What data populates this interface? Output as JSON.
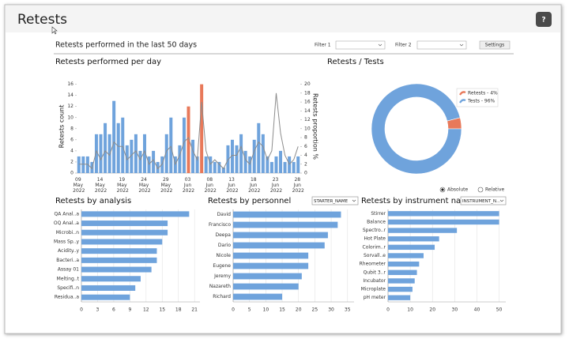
{
  "header": {
    "title": "Retests",
    "help": "?"
  },
  "toolbar": {
    "title": "Retests performed in the last 50 days",
    "filter1": "Filter 1",
    "filter2": "Filter 2",
    "settings": "Settings"
  },
  "chart_data": [
    {
      "type": "bar",
      "title": "Retests performed per day",
      "ylabel": "Retests count",
      "y2label": "Retests proportion %",
      "categories": [
        "09 May 2022",
        null,
        null,
        null,
        null,
        "14 May 2022",
        null,
        null,
        null,
        null,
        "19 May 2022",
        null,
        null,
        null,
        null,
        "24 May 2022",
        null,
        null,
        null,
        null,
        "29 May 2022",
        null,
        null,
        null,
        null,
        "03 Jun 2022",
        null,
        null,
        null,
        null,
        "08 Jun 2022",
        null,
        null,
        null,
        null,
        "13 Jun 2022",
        null,
        null,
        null,
        null,
        "18 Jun 2022",
        null,
        null,
        null,
        null,
        "23 Jun 2022",
        null,
        null,
        null,
        null,
        "28 Jun 2022"
      ],
      "series": [
        {
          "type": "bar",
          "color": "#6fa3dc",
          "colors": [
            "#6fa3dc",
            "#6fa3dc",
            "#6fa3dc",
            "#6fa3dc",
            "#6fa3dc",
            "#6fa3dc",
            "#6fa3dc",
            "#6fa3dc",
            "#6fa3dc",
            "#6fa3dc",
            "#6fa3dc",
            "#6fa3dc",
            "#6fa3dc",
            "#6fa3dc",
            "#6fa3dc",
            "#6fa3dc",
            "#6fa3dc",
            "#6fa3dc",
            "#6fa3dc",
            "#6fa3dc",
            "#6fa3dc",
            "#6fa3dc",
            "#6fa3dc",
            "#6fa3dc",
            "#6fa3dc",
            "#e8795a",
            "#6fa3dc",
            "#6fa3dc",
            "#e8795a",
            "#6fa3dc",
            "#6fa3dc",
            "#6fa3dc",
            "#6fa3dc",
            "#6fa3dc",
            "#6fa3dc",
            "#6fa3dc",
            "#6fa3dc",
            "#6fa3dc",
            "#6fa3dc",
            "#6fa3dc",
            "#6fa3dc",
            "#6fa3dc",
            "#6fa3dc",
            "#6fa3dc",
            "#6fa3dc",
            "#6fa3dc",
            "#6fa3dc",
            "#6fa3dc",
            "#6fa3dc",
            "#6fa3dc",
            "#6fa3dc"
          ],
          "values": [
            3,
            3,
            3,
            2,
            7,
            7,
            9,
            7,
            13,
            9,
            10,
            5,
            6,
            7,
            4,
            7,
            3,
            4,
            2,
            3,
            7,
            10,
            3,
            5,
            10,
            12,
            6,
            3,
            16,
            3,
            3,
            2,
            2,
            1,
            5,
            6,
            5,
            7,
            4,
            3,
            6,
            9,
            7,
            3,
            2,
            3,
            4,
            2,
            3,
            2,
            3
          ]
        },
        {
          "type": "line",
          "axis": "y2",
          "color": "#8c8c8c",
          "values": [
            2,
            2,
            2,
            1,
            5,
            3,
            5,
            4,
            7,
            6,
            6,
            3,
            4,
            5,
            3,
            5,
            2,
            3,
            1,
            2,
            5,
            6,
            2,
            4,
            7,
            8,
            5,
            3,
            16,
            5,
            2,
            3,
            2,
            1,
            3,
            4,
            4,
            6,
            3,
            2,
            5,
            7,
            6,
            3,
            5,
            18,
            9,
            4,
            2,
            3,
            6
          ]
        }
      ],
      "ylim": [
        0,
        16.8
      ],
      "yticks": [
        0,
        2,
        4,
        6,
        8,
        10,
        12,
        14,
        16
      ],
      "y2lim": [
        0,
        21
      ],
      "y2ticks": [
        0,
        2,
        4,
        6,
        8,
        10,
        12,
        14,
        16,
        18,
        20
      ]
    },
    {
      "type": "pie",
      "title": "Retests / Tests",
      "hole": true,
      "categories": [
        "Retests",
        "Tests"
      ],
      "values": [
        4,
        96
      ],
      "value_labels": [
        "Retests - 4%",
        "Tests - 96%"
      ],
      "colors": [
        "#e8795a",
        "#6fa3dc"
      ],
      "legend": "upper right",
      "options": [
        "Absolute",
        "Relative"
      ],
      "selected": 0
    },
    {
      "type": "hbar",
      "title": "Retests by analysis",
      "color": "#6fa3dc",
      "categories": [
        "QA Anal..a",
        "OQ Anal..a",
        "Microbi..n",
        "Mass Sp..y",
        "Acidity..y",
        "Bacteri..a",
        "Assay 01",
        "Melting..t",
        "Specifi..n",
        "Residua..a"
      ],
      "values": [
        20,
        16,
        16,
        15,
        14,
        14,
        13,
        11,
        10,
        9
      ],
      "xlim": [
        0,
        22
      ],
      "xticks": [
        0,
        3,
        6,
        9,
        12,
        15,
        18,
        21
      ],
      "grid": true
    },
    {
      "type": "hbar",
      "title": "Retests by personnel",
      "dropdown": "STARTER_NAME",
      "color": "#6fa3dc",
      "categories": [
        "David",
        "Francisco",
        "Deepa",
        "Dario",
        "Nicole",
        "Eugene",
        "Jeremy",
        "Nazareth",
        "Richard"
      ],
      "values": [
        33,
        32,
        29,
        28,
        23,
        23,
        21,
        20,
        15
      ],
      "xlim": [
        0,
        37
      ],
      "xticks": [
        0,
        5,
        10,
        15,
        20,
        25,
        30,
        35
      ],
      "grid": true
    },
    {
      "type": "hbar",
      "title": "Retests by instrument name",
      "dropdown": "INSTRUMENT_N...",
      "color": "#6fa3dc",
      "categories": [
        "Stirrer",
        "Balance",
        "Spectro..r",
        "Hot Plate",
        "Colorim..r",
        "Sorvall..e",
        "Rheometer",
        "Qubit 3..r",
        "Incubator",
        "Microplate",
        "pH meter"
      ],
      "values": [
        50,
        50,
        31,
        23,
        21,
        16,
        14,
        13,
        12,
        11,
        10
      ],
      "xlim": [
        0,
        53
      ],
      "xticks": [
        0,
        10,
        20,
        30,
        40,
        50
      ],
      "grid": true
    }
  ]
}
